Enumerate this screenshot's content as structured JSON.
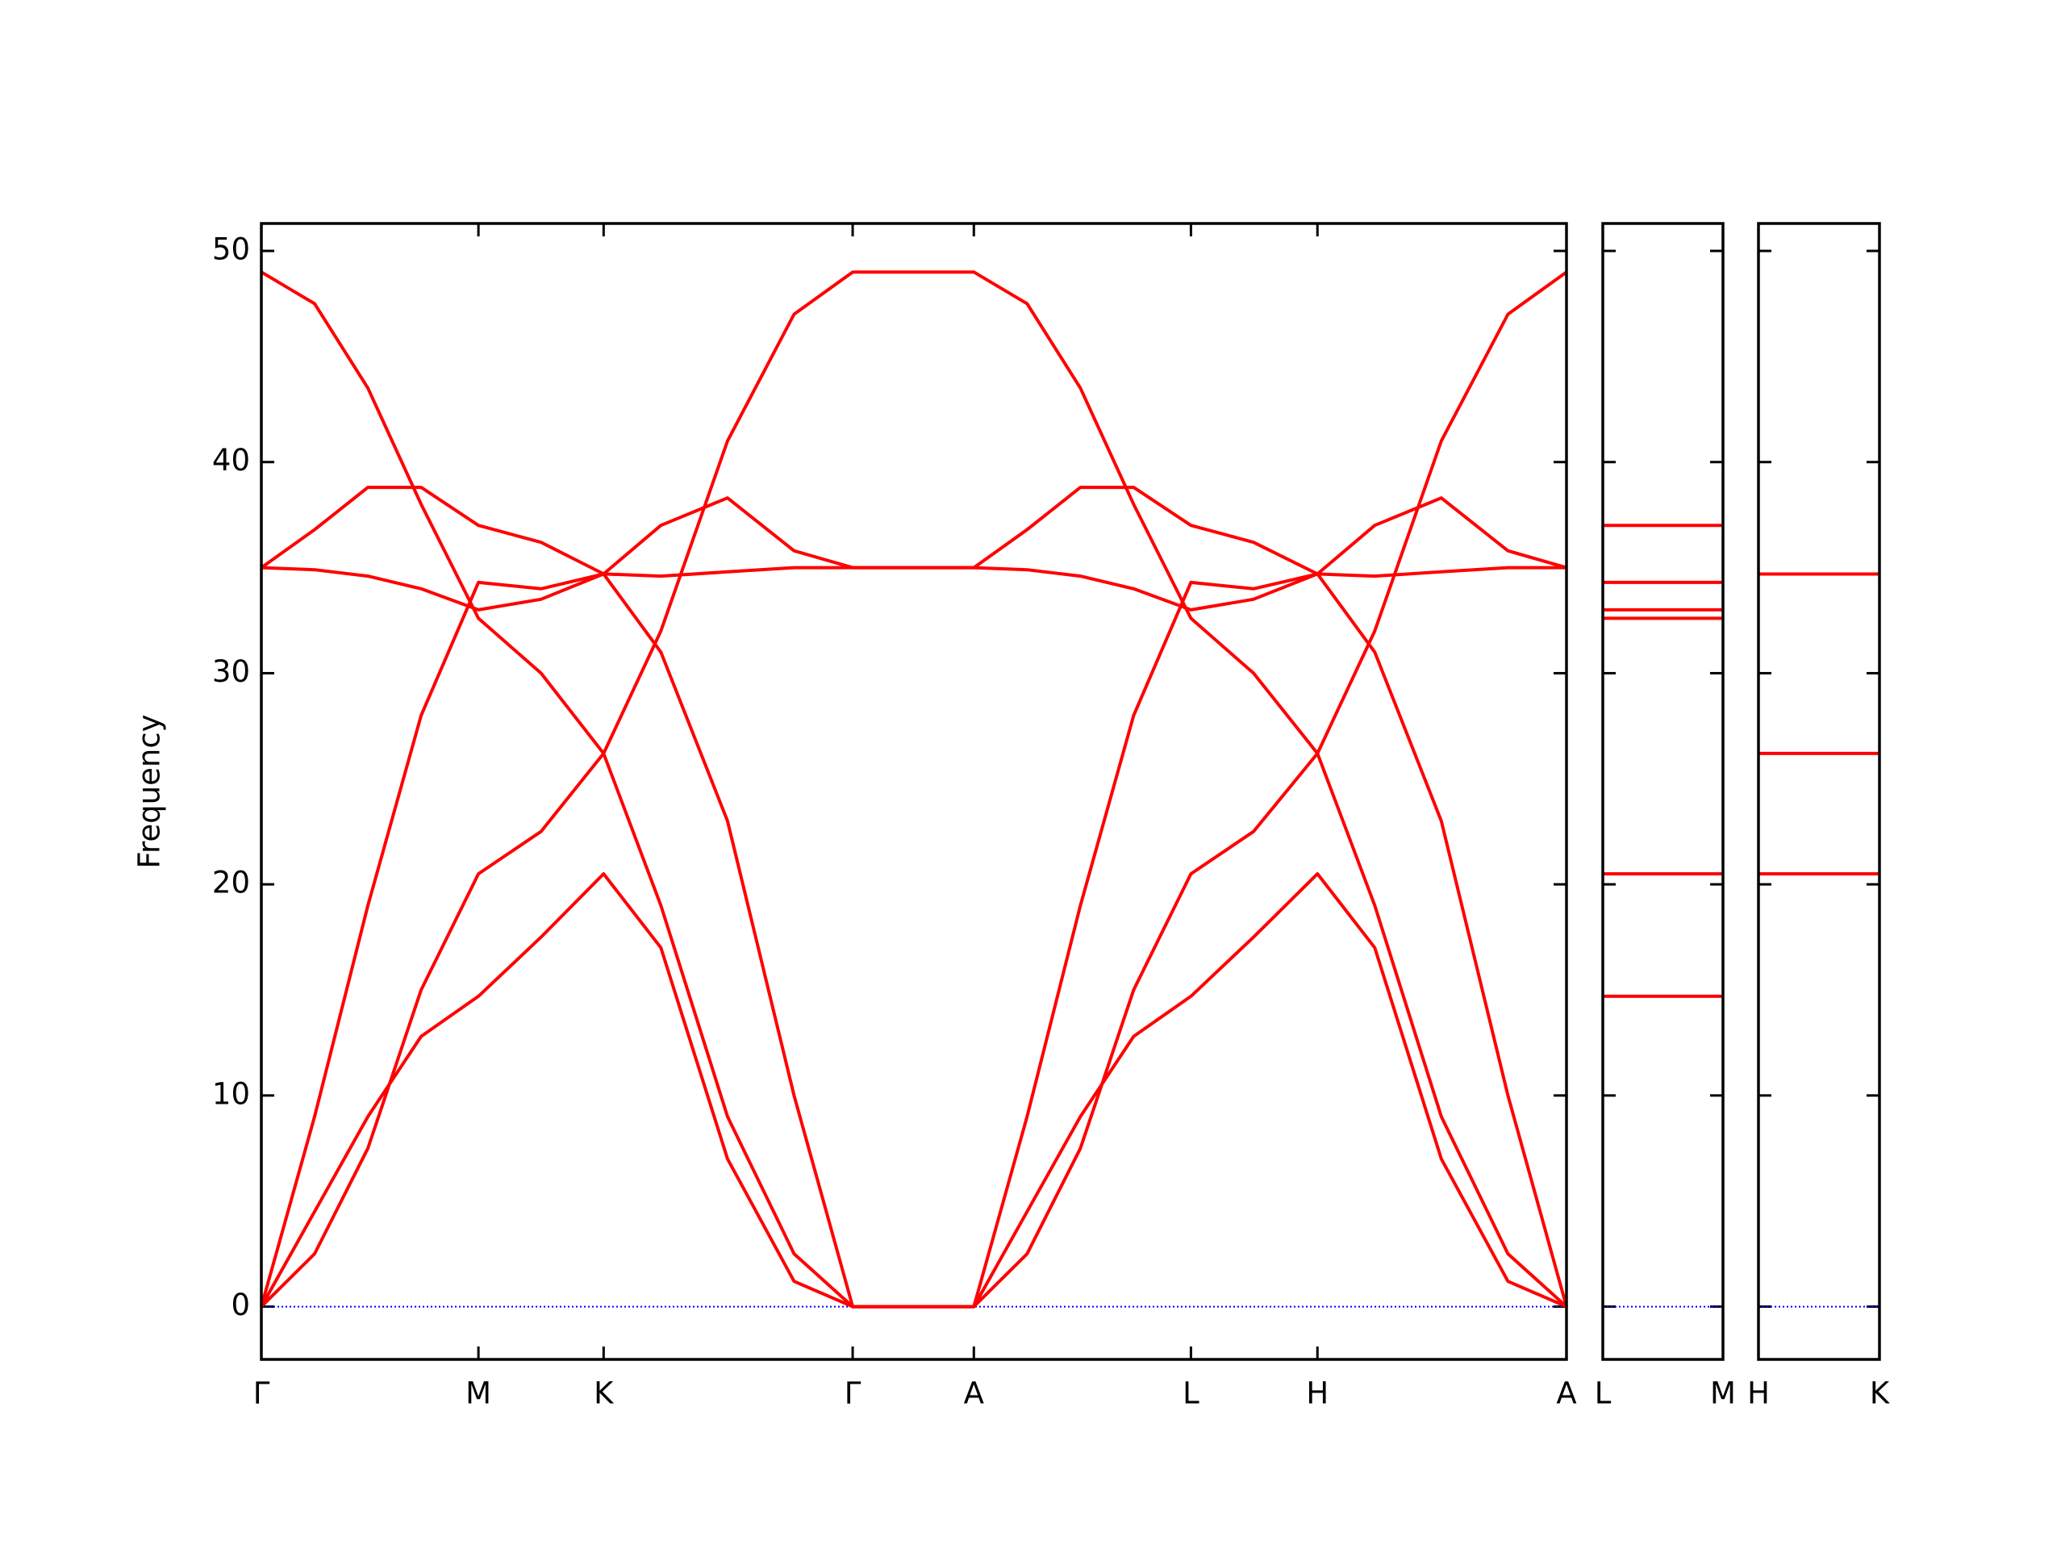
{
  "chart_data": [
    {
      "type": "line",
      "ylabel": "Frequency",
      "color": "#ff0000",
      "xlim": [
        0,
        9.8
      ],
      "xticks": [
        {
          "value": 0,
          "label": "Γ"
        },
        {
          "value": 1.63,
          "label": "M"
        },
        {
          "value": 2.57,
          "label": "K"
        },
        {
          "value": 4.44,
          "label": "Γ"
        },
        {
          "value": 5.35,
          "label": "A"
        },
        {
          "value": 6.98,
          "label": "L"
        },
        {
          "value": 7.93,
          "label": "H"
        },
        {
          "value": 9.8,
          "label": "A"
        }
      ],
      "ylim": [
        -2.5,
        51.3
      ],
      "yticks": [
        0,
        10,
        20,
        30,
        40,
        50
      ],
      "hline": 0,
      "hline_color": "#0000ff",
      "x": [
        0,
        0.4,
        0.8,
        1.2,
        1.63,
        2.1,
        2.57,
        3.0,
        3.5,
        4.0,
        4.44,
        5.35,
        5.75,
        6.15,
        6.55,
        6.98,
        7.45,
        7.93,
        8.36,
        8.86,
        9.36,
        9.8
      ],
      "series": [
        {
          "values": [
            49,
            47.5,
            43.5,
            38,
            32.6,
            30,
            26.2,
            19,
            9,
            2.5,
            0,
            0,
            9,
            19,
            28,
            34.3,
            34.0,
            34.7,
            37,
            38.3,
            35.8,
            35
          ]
        },
        {
          "values": [
            35,
            36.8,
            38.8,
            38.8,
            37,
            36.2,
            34.7,
            31,
            23,
            10,
            0,
            0,
            2.5,
            7.5,
            15,
            20.5,
            22.5,
            26.2,
            32,
            41,
            47,
            49
          ]
        },
        {
          "values": [
            35,
            34.9,
            34.6,
            34,
            33.0,
            33.5,
            34.7,
            34.6,
            34.8,
            35,
            35,
            35,
            36.8,
            38.8,
            38.8,
            37,
            36.2,
            34.7,
            31,
            23,
            10,
            0
          ]
        },
        {
          "values": [
            0,
            9,
            19,
            28,
            34.3,
            34.0,
            34.7,
            37,
            38.3,
            35.8,
            35,
            35,
            34.9,
            34.6,
            34,
            33.0,
            33.5,
            34.7,
            34.6,
            34.8,
            35,
            35
          ]
        },
        {
          "values": [
            0,
            2.5,
            7.5,
            15,
            20.5,
            22.5,
            26.2,
            32,
            41,
            47,
            49,
            49,
            47.5,
            43.5,
            38,
            32.6,
            30,
            26.2,
            19,
            9,
            2.5,
            0
          ]
        },
        {
          "values": [
            0,
            4.5,
            9,
            12.8,
            14.7,
            17.5,
            20.5,
            17,
            7,
            1.2,
            0,
            0,
            4.5,
            9,
            12.8,
            14.7,
            17.5,
            20.5,
            17,
            7,
            1.2,
            0
          ]
        }
      ]
    },
    {
      "type": "levels",
      "color": "#ff0000",
      "xlim": [
        0,
        1
      ],
      "xticks": [
        {
          "value": 0,
          "label": "L"
        },
        {
          "value": 1,
          "label": "M"
        }
      ],
      "ylim": [
        -2.5,
        51.3
      ],
      "yticks": [
        0,
        10,
        20,
        30,
        40,
        50
      ],
      "ytick_labels": false,
      "hline": 0,
      "hline_color": "#0000ff",
      "values": [
        37,
        34.3,
        33.0,
        32.6,
        20.5,
        14.7
      ]
    },
    {
      "type": "levels",
      "color": "#ff0000",
      "xlim": [
        0,
        1
      ],
      "xticks": [
        {
          "value": 0,
          "label": "H"
        },
        {
          "value": 1,
          "label": "K"
        }
      ],
      "ylim": [
        -2.5,
        51.3
      ],
      "yticks": [
        0,
        10,
        20,
        30,
        40,
        50
      ],
      "ytick_labels": false,
      "hline": 0,
      "hline_color": "#0000ff",
      "values": [
        34.7,
        26.2,
        20.5
      ]
    }
  ]
}
